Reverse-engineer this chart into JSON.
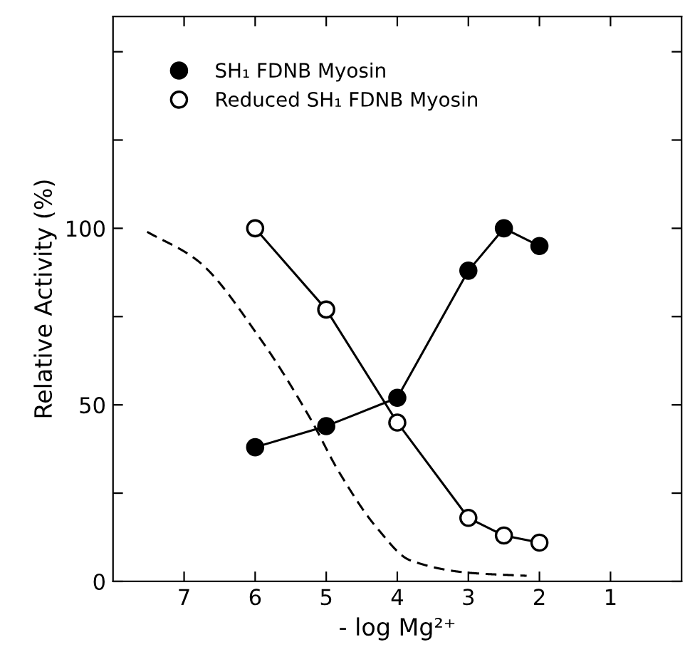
{
  "chart_data": {
    "type": "line",
    "xlabel": "- log Mg²⁺",
    "ylabel": "Relative Activity (%)",
    "xlim": [
      8,
      0
    ],
    "xticks": [
      7,
      6,
      5,
      4,
      3,
      2,
      1
    ],
    "ylim": [
      0,
      160
    ],
    "yticks": [
      0,
      {
        "value": 25,
        "label": null
      },
      50,
      {
        "value": 75,
        "label": null
      },
      100,
      {
        "value": 125,
        "label": null
      },
      {
        "value": 150,
        "label": null
      }
    ],
    "grid": false,
    "legend": "top left",
    "series": [
      {
        "name": "SH₁ FDNB Myosin",
        "color": "#000000",
        "marker": "circle",
        "x": [
          6,
          5,
          4,
          3,
          2.5,
          2
        ],
        "values": [
          38,
          44,
          52,
          88,
          100,
          95
        ]
      },
      {
        "name": "Reduced SH₁ FDNB Myosin",
        "color": "#ffffff",
        "marker": "circle",
        "x": [
          6,
          5,
          4,
          3,
          2.5,
          2
        ],
        "values": [
          100,
          77,
          45,
          18,
          13,
          11
        ]
      },
      {
        "color": "#000000",
        "marker": "none",
        "line_style": "dashed",
        "x": [
          7.52,
          6.82,
          5.92,
          5.22,
          4.82,
          4.28,
          3.82,
          2.96,
          2.18
        ],
        "values": [
          99,
          91,
          68.5,
          46,
          31,
          15,
          6,
          2.4,
          1.6
        ]
      }
    ]
  }
}
